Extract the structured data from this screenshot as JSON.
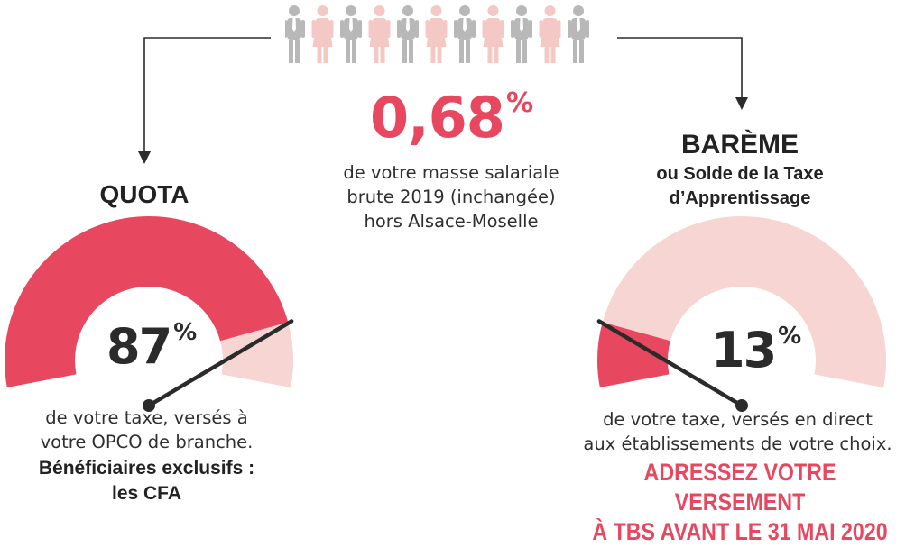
{
  "center": {
    "rate": "0,68",
    "rate_unit": "%",
    "desc_lines": [
      "de votre masse salariale",
      "brute 2019 (inchangée)",
      "hors Alsace-Moselle"
    ]
  },
  "quota": {
    "title": "QUOTA",
    "value": "87",
    "unit": "%",
    "fill_fraction": 0.87,
    "desc_lines": [
      "de votre taxe, versés à",
      "votre OPCO de branche."
    ],
    "bold_lines": [
      "Bénéficiaires exclusifs :",
      "les CFA"
    ]
  },
  "bareme": {
    "title": "BARÈME",
    "subtitle_lines": [
      "ou Solde de la Taxe",
      "d’Apprentissage"
    ],
    "value": "13",
    "unit": "%",
    "fill_fraction": 0.13,
    "desc_lines": [
      "de votre taxe, versés en direct",
      "aux établissements de votre choix."
    ],
    "cta_lines": [
      "ADRESSEZ VOTRE VERSEMENT",
      "À TBS AVANT LE 31 MAI 2020"
    ]
  },
  "colors": {
    "accent": "#e8485f",
    "light": "#f7d5d2",
    "grey": "#b8b8b8",
    "dark": "#2b2b2b"
  },
  "people": {
    "pattern": [
      "grey",
      "pink",
      "grey",
      "pink",
      "grey",
      "pink",
      "grey",
      "pink",
      "grey",
      "pink",
      "grey"
    ]
  }
}
